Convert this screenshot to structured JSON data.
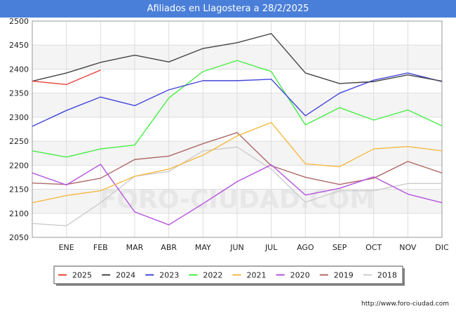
{
  "title": "Afiliados en Llagostera a 28/2/2025",
  "source": "http://www.foro-ciudad.com",
  "watermark": "FORO-CIUDAD.COM",
  "chart_data": {
    "type": "line",
    "title": "Afiliados en Llagostera a 28/2/2025",
    "x_positions": [
      "",
      "ENE",
      "FEB",
      "MAR",
      "ABR",
      "MAY",
      "JUN",
      "JUL",
      "AGO",
      "SEP",
      "OCT",
      "NOV",
      "DIC"
    ],
    "x_tick_labels": [
      "ENE",
      "FEB",
      "MAR",
      "ABR",
      "MAY",
      "JUN",
      "JUL",
      "AGO",
      "SEP",
      "OCT",
      "NOV",
      "DIC"
    ],
    "ylim": [
      2050,
      2500
    ],
    "yticks": [
      2050,
      2100,
      2150,
      2200,
      2250,
      2300,
      2350,
      2400,
      2450,
      2500
    ],
    "grid": true,
    "legend_position": "bottom",
    "series": [
      {
        "name": "2025",
        "color": "#e8413a",
        "values": [
          2375,
          2368,
          2398
        ]
      },
      {
        "name": "2024",
        "color": "#444444",
        "values": [
          2375,
          2392,
          2414,
          2429,
          2415,
          2443,
          2455,
          2474,
          2392,
          2370,
          2374,
          2388,
          2375
        ]
      },
      {
        "name": "2023",
        "color": "#4444dd",
        "values": [
          2281,
          2314,
          2342,
          2324,
          2357,
          2376,
          2376,
          2379,
          2303,
          2350,
          2377,
          2392,
          2374
        ]
      },
      {
        "name": "2022",
        "color": "#44ee44",
        "values": [
          2230,
          2217,
          2234,
          2242,
          2340,
          2395,
          2418,
          2395,
          2284,
          2320,
          2294,
          2315,
          2282
        ]
      },
      {
        "name": "2021",
        "color": "#f5b942",
        "values": [
          2122,
          2137,
          2147,
          2177,
          2192,
          2221,
          2261,
          2289,
          2203,
          2197,
          2234,
          2239,
          2230
        ]
      },
      {
        "name": "2020",
        "color": "#b552e0",
        "values": [
          2184,
          2159,
          2202,
          2103,
          2076,
          2120,
          2166,
          2201,
          2138,
          2152,
          2176,
          2140,
          2122
        ]
      },
      {
        "name": "2019",
        "color": "#b06868",
        "values": [
          2163,
          2160,
          2173,
          2212,
          2219,
          2245,
          2268,
          2199,
          2175,
          2160,
          2173,
          2208,
          2184
        ]
      },
      {
        "name": "2018",
        "color": "#cccccc",
        "values": [
          2079,
          2074,
          2122,
          2177,
          2187,
          2230,
          2238,
          2192,
          2123,
          2147,
          2147,
          2162,
          2162
        ]
      }
    ]
  }
}
